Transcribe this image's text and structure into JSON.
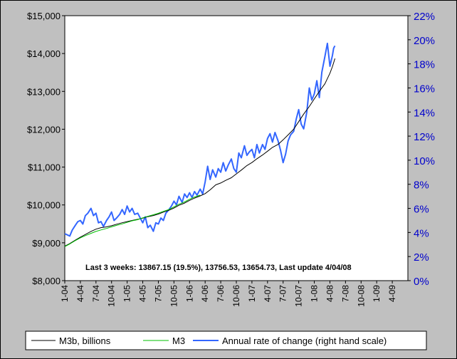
{
  "chart_data": {
    "type": "line",
    "left_axis": {
      "ylim": [
        8000,
        15000
      ],
      "ticks": [
        {
          "v": 8000,
          "label": "$8,000"
        },
        {
          "v": 9000,
          "label": "$9,000"
        },
        {
          "v": 10000,
          "label": "$10,000"
        },
        {
          "v": 11000,
          "label": "$11,000"
        },
        {
          "v": 12000,
          "label": "$12,000"
        },
        {
          "v": 13000,
          "label": "$13,000"
        },
        {
          "v": 14000,
          "label": "$14,000"
        },
        {
          "v": 15000,
          "label": "$15,000"
        }
      ]
    },
    "right_axis": {
      "ylim": [
        0,
        22
      ],
      "ticks": [
        {
          "v": 0,
          "label": "0%"
        },
        {
          "v": 2,
          "label": "2%"
        },
        {
          "v": 4,
          "label": "4%"
        },
        {
          "v": 6,
          "label": "6%"
        },
        {
          "v": 8,
          "label": "8%"
        },
        {
          "v": 10,
          "label": "10%"
        },
        {
          "v": 12,
          "label": "12%"
        },
        {
          "v": 14,
          "label": "14%"
        },
        {
          "v": 16,
          "label": "16%"
        },
        {
          "v": 18,
          "label": "18%"
        },
        {
          "v": 20,
          "label": "20%"
        },
        {
          "v": 22,
          "label": "22%"
        }
      ]
    },
    "x_axis": {
      "xlim": [
        2004.0,
        2009.5
      ],
      "ticks": [
        {
          "v": 2004.0,
          "label": "1-04"
        },
        {
          "v": 2004.25,
          "label": "4-04"
        },
        {
          "v": 2004.5,
          "label": "7-04"
        },
        {
          "v": 2004.75,
          "label": "10-04"
        },
        {
          "v": 2005.0,
          "label": "1-05"
        },
        {
          "v": 2005.25,
          "label": "4-05"
        },
        {
          "v": 2005.5,
          "label": "7-05"
        },
        {
          "v": 2005.75,
          "label": "10-05"
        },
        {
          "v": 2006.0,
          "label": "1-06"
        },
        {
          "v": 2006.25,
          "label": "4-06"
        },
        {
          "v": 2006.5,
          "label": "7-06"
        },
        {
          "v": 2006.75,
          "label": "10-06"
        },
        {
          "v": 2007.0,
          "label": "1-07"
        },
        {
          "v": 2007.25,
          "label": "4-07"
        },
        {
          "v": 2007.5,
          "label": "7-07"
        },
        {
          "v": 2007.75,
          "label": "10-07"
        },
        {
          "v": 2008.0,
          "label": "1-08"
        },
        {
          "v": 2008.25,
          "label": "4-08"
        },
        {
          "v": 2008.5,
          "label": "7-08"
        },
        {
          "v": 2008.75,
          "label": "10-08"
        },
        {
          "v": 2009.0,
          "label": "1-09"
        },
        {
          "v": 2009.25,
          "label": "4-09"
        }
      ]
    },
    "annotation": "Last 3 weeks: 13867.15 (19.5%), 13756.53, 13654.73, Last update 4/04/08",
    "grid": false,
    "legend_position": "bottom",
    "series": [
      {
        "name": "M3b, billions",
        "axis": "left",
        "color": "#000000",
        "points": [
          [
            2004.0,
            8910
          ],
          [
            2004.08,
            8980
          ],
          [
            2004.17,
            9070
          ],
          [
            2004.25,
            9150
          ],
          [
            2004.33,
            9220
          ],
          [
            2004.42,
            9300
          ],
          [
            2004.5,
            9360
          ],
          [
            2004.58,
            9400
          ],
          [
            2004.67,
            9420
          ],
          [
            2004.75,
            9450
          ],
          [
            2004.83,
            9490
          ],
          [
            2004.92,
            9530
          ],
          [
            2005.0,
            9560
          ],
          [
            2005.08,
            9590
          ],
          [
            2005.17,
            9620
          ],
          [
            2005.25,
            9650
          ],
          [
            2005.33,
            9690
          ],
          [
            2005.42,
            9720
          ],
          [
            2005.5,
            9760
          ],
          [
            2005.58,
            9810
          ],
          [
            2005.67,
            9860
          ],
          [
            2005.75,
            9920
          ],
          [
            2005.83,
            9990
          ],
          [
            2005.92,
            10050
          ],
          [
            2006.0,
            10120
          ],
          [
            2006.08,
            10180
          ],
          [
            2006.17,
            10240
          ],
          [
            2006.25,
            10300
          ],
          [
            2006.33,
            10400
          ],
          [
            2006.42,
            10530
          ],
          [
            2006.5,
            10580
          ],
          [
            2006.58,
            10650
          ],
          [
            2006.67,
            10720
          ],
          [
            2006.75,
            10820
          ],
          [
            2006.83,
            10920
          ],
          [
            2006.92,
            11040
          ],
          [
            2007.0,
            11120
          ],
          [
            2007.08,
            11220
          ],
          [
            2007.17,
            11320
          ],
          [
            2007.25,
            11420
          ],
          [
            2007.33,
            11520
          ],
          [
            2007.42,
            11600
          ],
          [
            2007.5,
            11720
          ],
          [
            2007.58,
            11850
          ],
          [
            2007.67,
            12000
          ],
          [
            2007.75,
            12200
          ],
          [
            2007.83,
            12400
          ],
          [
            2007.92,
            12600
          ],
          [
            2008.0,
            12800
          ],
          [
            2008.08,
            13000
          ],
          [
            2008.17,
            13200
          ],
          [
            2008.25,
            13480
          ],
          [
            2008.29,
            13654.73
          ],
          [
            2008.31,
            13756.53
          ],
          [
            2008.33,
            13867.15
          ]
        ]
      },
      {
        "name": "M3",
        "axis": "left",
        "color": "#00c000",
        "points": [
          [
            2004.0,
            8900
          ],
          [
            2004.08,
            8970
          ],
          [
            2004.17,
            9060
          ],
          [
            2004.25,
            9130
          ],
          [
            2004.33,
            9190
          ],
          [
            2004.42,
            9250
          ],
          [
            2004.5,
            9300
          ],
          [
            2004.58,
            9340
          ],
          [
            2004.67,
            9380
          ],
          [
            2004.75,
            9420
          ],
          [
            2004.83,
            9460
          ],
          [
            2004.92,
            9500
          ],
          [
            2005.0,
            9540
          ],
          [
            2005.08,
            9580
          ],
          [
            2005.17,
            9610
          ],
          [
            2005.25,
            9660
          ],
          [
            2005.33,
            9700
          ],
          [
            2005.42,
            9740
          ],
          [
            2005.5,
            9780
          ],
          [
            2005.58,
            9830
          ],
          [
            2005.67,
            9880
          ],
          [
            2005.75,
            9950
          ],
          [
            2005.83,
            10020
          ],
          [
            2005.92,
            10080
          ],
          [
            2006.0,
            10150
          ],
          [
            2006.08,
            10210
          ],
          [
            2006.17,
            10260
          ]
        ]
      },
      {
        "name": "Annual rate of change (right hand scale)",
        "axis": "right",
        "color": "#3366ff",
        "points": [
          [
            2004.0,
            3.9
          ],
          [
            2004.04,
            3.8
          ],
          [
            2004.08,
            3.7
          ],
          [
            2004.12,
            4.2
          ],
          [
            2004.17,
            4.6
          ],
          [
            2004.21,
            4.9
          ],
          [
            2004.25,
            5.0
          ],
          [
            2004.29,
            4.7
          ],
          [
            2004.33,
            5.4
          ],
          [
            2004.37,
            5.6
          ],
          [
            2004.42,
            6.0
          ],
          [
            2004.46,
            5.4
          ],
          [
            2004.5,
            5.6
          ],
          [
            2004.54,
            4.8
          ],
          [
            2004.58,
            4.9
          ],
          [
            2004.62,
            4.5
          ],
          [
            2004.67,
            5.0
          ],
          [
            2004.71,
            5.3
          ],
          [
            2004.75,
            5.7
          ],
          [
            2004.79,
            5.0
          ],
          [
            2004.83,
            5.2
          ],
          [
            2004.88,
            5.5
          ],
          [
            2004.92,
            5.9
          ],
          [
            2004.96,
            5.5
          ],
          [
            2005.0,
            6.2
          ],
          [
            2005.04,
            5.7
          ],
          [
            2005.08,
            6.0
          ],
          [
            2005.12,
            5.5
          ],
          [
            2005.17,
            5.6
          ],
          [
            2005.21,
            5.2
          ],
          [
            2005.25,
            4.8
          ],
          [
            2005.29,
            5.3
          ],
          [
            2005.33,
            4.4
          ],
          [
            2005.37,
            4.6
          ],
          [
            2005.42,
            4.1
          ],
          [
            2005.46,
            4.8
          ],
          [
            2005.5,
            4.7
          ],
          [
            2005.54,
            5.2
          ],
          [
            2005.58,
            5.0
          ],
          [
            2005.62,
            5.6
          ],
          [
            2005.67,
            5.9
          ],
          [
            2005.71,
            6.2
          ],
          [
            2005.75,
            6.6
          ],
          [
            2005.79,
            6.3
          ],
          [
            2005.83,
            7.0
          ],
          [
            2005.88,
            6.5
          ],
          [
            2005.92,
            7.2
          ],
          [
            2005.96,
            6.9
          ],
          [
            2006.0,
            7.3
          ],
          [
            2006.04,
            6.9
          ],
          [
            2006.08,
            7.4
          ],
          [
            2006.12,
            7.1
          ],
          [
            2006.17,
            7.6
          ],
          [
            2006.21,
            7.2
          ],
          [
            2006.25,
            8.2
          ],
          [
            2006.29,
            9.5
          ],
          [
            2006.33,
            8.4
          ],
          [
            2006.37,
            9.2
          ],
          [
            2006.42,
            8.6
          ],
          [
            2006.46,
            9.3
          ],
          [
            2006.5,
            9.0
          ],
          [
            2006.54,
            9.8
          ],
          [
            2006.58,
            9.1
          ],
          [
            2006.62,
            9.6
          ],
          [
            2006.67,
            10.1
          ],
          [
            2006.71,
            9.3
          ],
          [
            2006.75,
            9.0
          ],
          [
            2006.79,
            10.6
          ],
          [
            2006.83,
            10.2
          ],
          [
            2006.88,
            11.2
          ],
          [
            2006.92,
            10.4
          ],
          [
            2006.96,
            10.7
          ],
          [
            2007.0,
            10.9
          ],
          [
            2007.04,
            10.2
          ],
          [
            2007.08,
            11.3
          ],
          [
            2007.12,
            10.6
          ],
          [
            2007.17,
            11.3
          ],
          [
            2007.21,
            10.9
          ],
          [
            2007.25,
            11.8
          ],
          [
            2007.29,
            12.2
          ],
          [
            2007.33,
            11.5
          ],
          [
            2007.37,
            12.3
          ],
          [
            2007.42,
            11.6
          ],
          [
            2007.46,
            10.8
          ],
          [
            2007.5,
            9.8
          ],
          [
            2007.54,
            10.5
          ],
          [
            2007.58,
            11.6
          ],
          [
            2007.62,
            12.1
          ],
          [
            2007.67,
            12.4
          ],
          [
            2007.71,
            13.4
          ],
          [
            2007.75,
            14.2
          ],
          [
            2007.79,
            13.0
          ],
          [
            2007.83,
            12.6
          ],
          [
            2007.88,
            14.0
          ],
          [
            2007.92,
            16.0
          ],
          [
            2007.96,
            15.0
          ],
          [
            2008.0,
            15.5
          ],
          [
            2008.04,
            16.6
          ],
          [
            2008.08,
            15.2
          ],
          [
            2008.12,
            17.3
          ],
          [
            2008.17,
            18.6
          ],
          [
            2008.21,
            19.7
          ],
          [
            2008.25,
            17.8
          ],
          [
            2008.29,
            18.7
          ],
          [
            2008.31,
            19.3
          ],
          [
            2008.33,
            19.5
          ]
        ]
      }
    ]
  }
}
